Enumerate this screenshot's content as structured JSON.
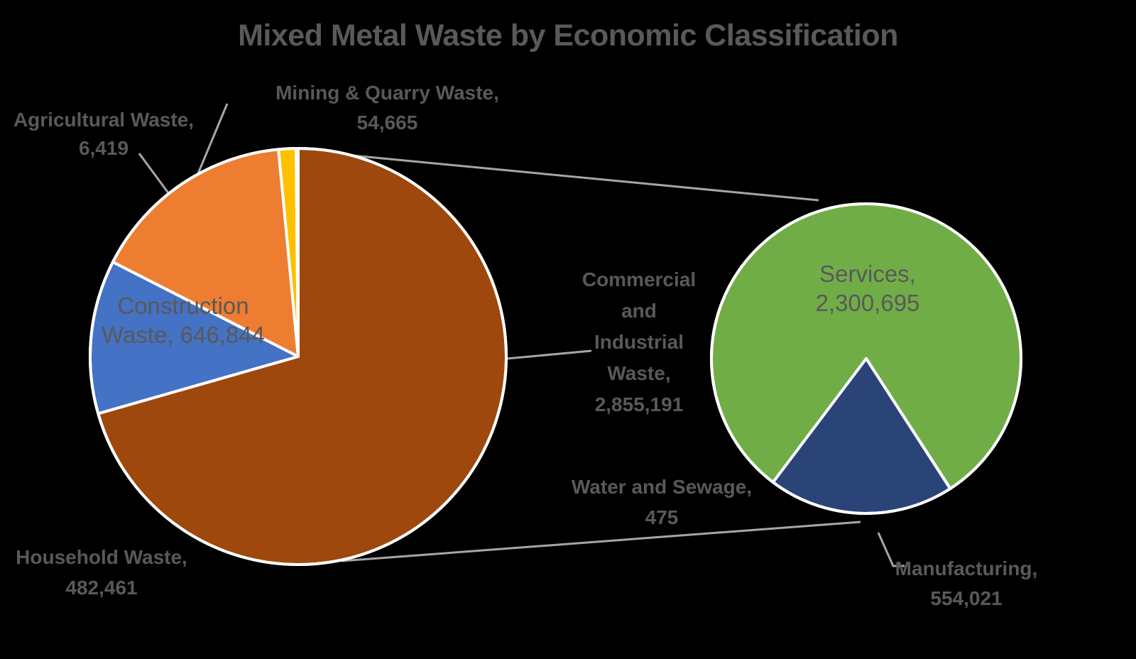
{
  "chart_data": {
    "type": "pie",
    "variant": "pie-of-pie",
    "title": "Mixed Metal Waste by Economic Classification",
    "legend_position": "none",
    "main_pie": {
      "start_angle_deg": 0,
      "total": 4045580,
      "slices": [
        {
          "label": "Commercial and Industrial Waste",
          "value": 2855191,
          "color": "#9E480E"
        },
        {
          "label": "Household Waste",
          "value": 482461,
          "color": "#4472C4"
        },
        {
          "label": "Construction Waste",
          "value": 646844,
          "color": "#ED7D31"
        },
        {
          "label": "Mining & Quarry Waste",
          "value": 54665,
          "color": "#FFC000"
        },
        {
          "label": "Agricultural Waste",
          "value": 6419,
          "color": "#E2EFDA"
        }
      ]
    },
    "secondary_pie": {
      "parent_slice": "Commercial and Industrial Waste",
      "start_angle_deg": 217,
      "total": 2855191,
      "slices": [
        {
          "label": "Services",
          "value": 2300695,
          "color": "#70AD47"
        },
        {
          "label": "Water and Sewage",
          "value": 475,
          "color": "#255E91"
        },
        {
          "label": "Manufacturing",
          "value": 554021,
          "color": "#2A4478"
        }
      ]
    }
  },
  "labels": {
    "agricultural": {
      "line1": "Agricultural Waste,",
      "line2": "6,419"
    },
    "mining": {
      "line1": "Mining & Quarry Waste,",
      "line2": "54,665"
    },
    "construction": {
      "line1": "Construction",
      "line2": "Waste, 646,844"
    },
    "household": {
      "line1": "Household Waste,",
      "line2": "482,461"
    },
    "commercial": {
      "line1": "Commercial",
      "line2": "and",
      "line3": "Industrial",
      "line4": "Waste,",
      "line5": "2,855,191"
    },
    "services": {
      "line1": "Services,",
      "line2": "2,300,695"
    },
    "water": {
      "line1": "Water and Sewage,",
      "line2": "475"
    },
    "manufacturing": {
      "line1": "Manufacturing,",
      "line2": "554,021"
    }
  },
  "style": {
    "background": "#000000",
    "label_color": "#595959",
    "leader_line_color": "#A6A6A6",
    "slice_border_color": "#FFFFFF"
  }
}
